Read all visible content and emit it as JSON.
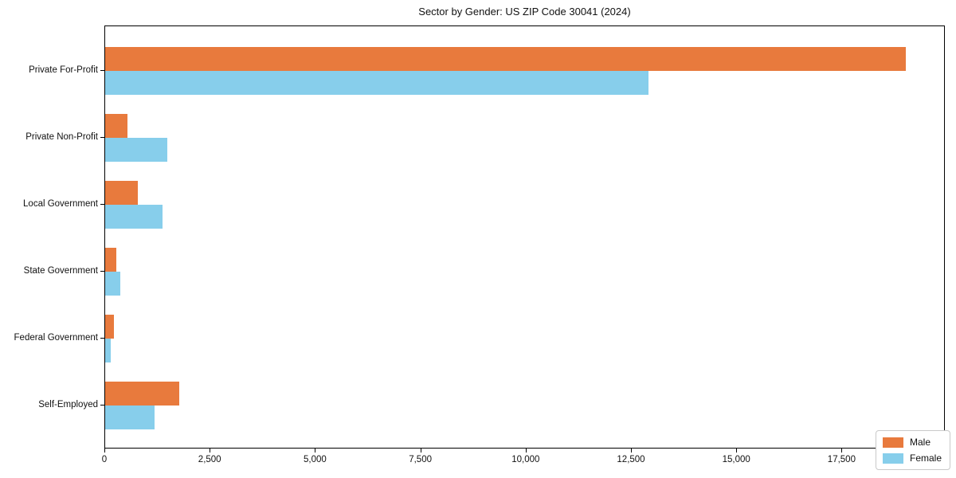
{
  "title": "Sector by Gender: US ZIP Code 30041 (2024)",
  "chart_data": {
    "type": "bar",
    "orientation": "horizontal",
    "title": "Sector by Gender: US ZIP Code 30041 (2024)",
    "xlabel": "",
    "ylabel": "",
    "categories": [
      "Private For-Profit",
      "Private Non-Profit",
      "Local Government",
      "State Government",
      "Federal Government",
      "Self-Employed"
    ],
    "series": [
      {
        "name": "Male",
        "color": "#e87a3d",
        "values": [
          19000,
          520,
          770,
          265,
          215,
          1760
        ]
      },
      {
        "name": "Female",
        "color": "#87ceeb",
        "values": [
          12900,
          1480,
          1370,
          360,
          125,
          1170
        ]
      }
    ],
    "xlim": [
      0,
      19950
    ],
    "x_ticks": [
      0,
      2500,
      5000,
      7500,
      10000,
      12500,
      15000,
      17500
    ],
    "x_tick_labels": [
      "0",
      "2,500",
      "5,000",
      "7,500",
      "10,000",
      "12,500",
      "15,000",
      "17,500"
    ],
    "grid": false,
    "legend_position": "lower right"
  }
}
